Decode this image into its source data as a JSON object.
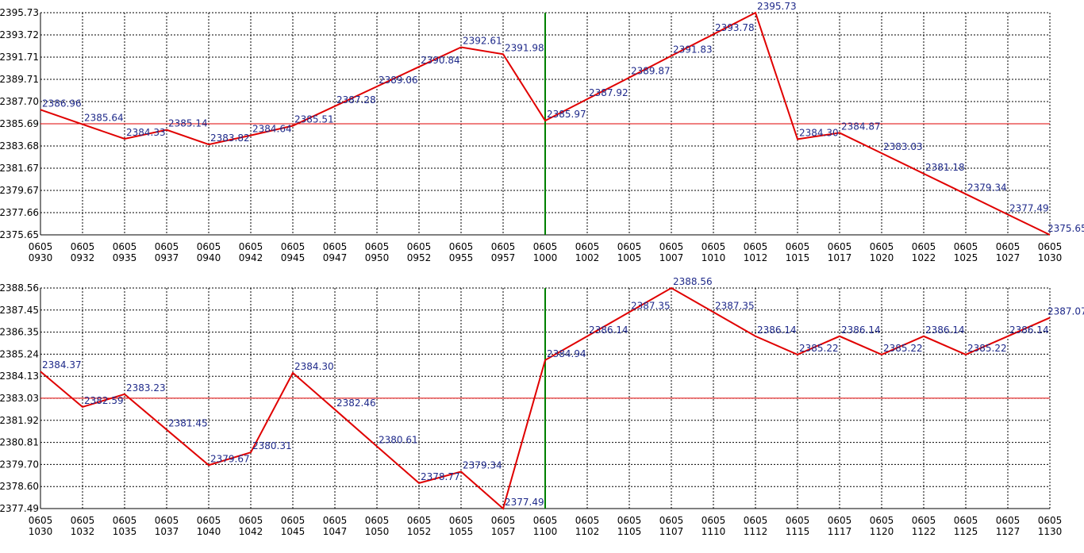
{
  "chart_data": [
    {
      "type": "line",
      "x_tick_top": [
        "0605",
        "0605",
        "0605",
        "0605",
        "0605",
        "0605",
        "0605",
        "0605",
        "0605",
        "0605",
        "0605",
        "0605",
        "0605",
        "0605",
        "0605",
        "0605",
        "0605",
        "0605",
        "0605",
        "0605",
        "0605",
        "0605",
        "0605",
        "0605",
        "0605"
      ],
      "x_tick_bottom": [
        "0930",
        "0932",
        "0935",
        "0937",
        "0940",
        "0942",
        "0945",
        "0947",
        "0950",
        "0952",
        "0955",
        "0957",
        "1000",
        "1002",
        "1005",
        "1007",
        "1010",
        "1012",
        "1015",
        "1017",
        "1020",
        "1022",
        "1025",
        "1027",
        "1030"
      ],
      "y_ticks": [
        "2395.73",
        "2393.72",
        "2391.71",
        "2389.71",
        "2387.70",
        "2385.69",
        "2383.68",
        "2381.67",
        "2379.67",
        "2377.66",
        "2375.65"
      ],
      "ylim": [
        2375.65,
        2395.73
      ],
      "values": [
        2386.96,
        2385.64,
        2384.33,
        2385.14,
        2383.82,
        2384.64,
        2385.51,
        2387.28,
        2389.06,
        2390.84,
        2392.61,
        2391.98,
        2385.97,
        2387.92,
        2389.87,
        2391.83,
        2393.78,
        2395.73,
        2384.3,
        2384.87,
        2383.03,
        2381.18,
        2379.34,
        2377.49,
        2375.65
      ],
      "point_labels": [
        "2386.96",
        "2385.64",
        "2384.33",
        "2385.14",
        "2383.82",
        "2384.64",
        "2385.51",
        "2387.28",
        "2389.06",
        "2390.84",
        "2392.61",
        "2391.98",
        "2385.97",
        "2387.92",
        "2389.87",
        "2391.83",
        "2393.78",
        "2395.73",
        "2384.30",
        "2384.87",
        "2383.03",
        "2381.18",
        "2379.34",
        "2377.49",
        "2375.65"
      ],
      "reference_value": 2385.69,
      "marker_index": 12,
      "grid": true,
      "line_color": "#e00000",
      "reference_color": "#e00000",
      "marker_color": "#008000",
      "label_color": "#1f2a8a"
    },
    {
      "type": "line",
      "x_tick_top": [
        "0605",
        "0605",
        "0605",
        "0605",
        "0605",
        "0605",
        "0605",
        "0605",
        "0605",
        "0605",
        "0605",
        "0605",
        "0605",
        "0605",
        "0605",
        "0605",
        "0605",
        "0605",
        "0605",
        "0605",
        "0605",
        "0605",
        "0605",
        "0605",
        "0605"
      ],
      "x_tick_bottom": [
        "1030",
        "1032",
        "1035",
        "1037",
        "1040",
        "1042",
        "1045",
        "1047",
        "1050",
        "1052",
        "1055",
        "1057",
        "1100",
        "1102",
        "1105",
        "1107",
        "1110",
        "1112",
        "1115",
        "1117",
        "1120",
        "1122",
        "1125",
        "1127",
        "1130"
      ],
      "y_ticks": [
        "2388.56",
        "2387.45",
        "2386.35",
        "2385.24",
        "2384.13",
        "2383.03",
        "2381.92",
        "2380.81",
        "2379.70",
        "2378.60",
        "2377.49"
      ],
      "ylim": [
        2377.49,
        2388.56
      ],
      "values": [
        2384.37,
        2382.59,
        2383.23,
        2381.45,
        2379.67,
        2380.31,
        2384.3,
        2382.46,
        2380.61,
        2378.77,
        2379.34,
        2377.49,
        2384.94,
        2386.14,
        2387.35,
        2388.56,
        2387.35,
        2386.14,
        2385.22,
        2386.14,
        2385.22,
        2386.14,
        2385.22,
        2386.14,
        2387.07
      ],
      "point_labels": [
        "2384.37",
        "2382.59",
        "2383.23",
        "2381.45",
        "2379.67",
        "2380.31",
        "2384.30",
        "2382.46",
        "2380.61",
        "2378.77",
        "2379.34",
        "2377.49",
        "2384.94",
        "2386.14",
        "2387.35",
        "2388.56",
        "2387.35",
        "2386.14",
        "2385.22",
        "2386.14",
        "2385.22",
        "2386.14",
        "2385.22",
        "2386.14",
        "2387.07"
      ],
      "reference_value": 2383.03,
      "marker_index": 12,
      "grid": true,
      "line_color": "#e00000",
      "reference_color": "#e00000",
      "marker_color": "#008000",
      "label_color": "#1f2a8a"
    }
  ]
}
